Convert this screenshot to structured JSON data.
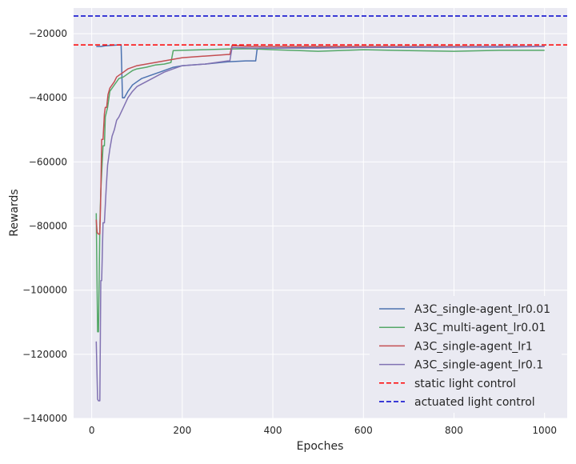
{
  "chart_data": {
    "type": "line",
    "xlabel": "Epoches",
    "ylabel": "Rewards",
    "xlim": [
      -40,
      1050
    ],
    "ylim": [
      -140000,
      -12000
    ],
    "xticks": [
      0,
      200,
      400,
      600,
      800,
      1000
    ],
    "xtick_labels": [
      "0",
      "200",
      "400",
      "600",
      "800",
      "1000"
    ],
    "yticks": [
      -140000,
      -120000,
      -100000,
      -80000,
      -60000,
      -40000,
      -20000
    ],
    "ytick_labels": [
      "−140000",
      "−120000",
      "−100000",
      "−80000",
      "−60000",
      "−40000",
      "−20000"
    ],
    "grid": true,
    "legend_position": "lower-right",
    "series": [
      {
        "name": "A3C_single-agent_lr0.01",
        "color": "#4c72b0",
        "style": "solid",
        "x": [
          10,
          20,
          30,
          40,
          50,
          60,
          65,
          68,
          72,
          80,
          85,
          90,
          100,
          110,
          120,
          130,
          140,
          150,
          160,
          180,
          200,
          250,
          300,
          340,
          362,
          365,
          370,
          400,
          500,
          600,
          700,
          800,
          900,
          1000
        ],
        "y": [
          -24000,
          -24000,
          -23800,
          -23700,
          -23600,
          -23500,
          -23500,
          -40000,
          -40000,
          -38000,
          -37000,
          -36000,
          -35000,
          -34000,
          -33500,
          -33000,
          -32500,
          -32000,
          -31500,
          -30500,
          -30000,
          -29500,
          -28800,
          -28500,
          -28500,
          -25000,
          -24500,
          -24500,
          -24300,
          -24300,
          -24300,
          -24200,
          -24200,
          -24000
        ]
      },
      {
        "name": "A3C_multi-agent_lr0.01",
        "color": "#55a868",
        "style": "solid",
        "x": [
          10,
          13,
          15,
          18,
          20,
          25,
          28,
          30,
          35,
          38,
          40,
          45,
          50,
          55,
          60,
          70,
          80,
          90,
          100,
          120,
          140,
          160,
          175,
          180,
          200,
          250,
          300,
          350,
          400,
          500,
          600,
          700,
          800,
          900,
          1000
        ],
        "y": [
          -76000,
          -113000,
          -113000,
          -80000,
          -69000,
          -55000,
          -55000,
          -46000,
          -43000,
          -40000,
          -38000,
          -37000,
          -36000,
          -35000,
          -34000,
          -33500,
          -32500,
          -31500,
          -31000,
          -30500,
          -29800,
          -29500,
          -29000,
          -25300,
          -25200,
          -25000,
          -24800,
          -24700,
          -25000,
          -25500,
          -25000,
          -25300,
          -25500,
          -25200,
          -25200
        ]
      },
      {
        "name": "A3C_single-agent_lr1",
        "color": "#c44e52",
        "style": "solid",
        "x": [
          10,
          12,
          15,
          18,
          20,
          22,
          25,
          28,
          30,
          33,
          36,
          40,
          45,
          50,
          55,
          60,
          65,
          70,
          80,
          90,
          100,
          120,
          140,
          160,
          180,
          200,
          250,
          300,
          305,
          310,
          350,
          400,
          500,
          600,
          700,
          800,
          900,
          1000
        ],
        "y": [
          -78000,
          -82000,
          -82500,
          -82500,
          -70000,
          -53000,
          -53000,
          -45000,
          -43000,
          -43000,
          -39000,
          -37000,
          -36000,
          -35000,
          -33500,
          -33000,
          -32500,
          -32000,
          -31000,
          -30500,
          -30000,
          -29500,
          -29000,
          -28500,
          -28000,
          -27500,
          -27000,
          -26500,
          -26500,
          -23700,
          -24000,
          -24000,
          -24000,
          -24000,
          -24000,
          -24000,
          -24000,
          -24000
        ]
      },
      {
        "name": "A3C_single-agent_lr0.1",
        "color": "#8172b2",
        "style": "solid",
        "x": [
          10,
          13,
          15,
          18,
          20,
          22,
          25,
          28,
          32,
          35,
          40,
          45,
          50,
          55,
          60,
          70,
          80,
          90,
          100,
          120,
          140,
          160,
          180,
          200,
          250,
          300,
          305,
          310,
          350,
          400,
          500,
          600,
          700,
          800,
          900,
          1000
        ],
        "y": [
          -116000,
          -134000,
          -134500,
          -134500,
          -97000,
          -97000,
          -79000,
          -79000,
          -68000,
          -61000,
          -56000,
          -52000,
          -50000,
          -47000,
          -46000,
          -43000,
          -40000,
          -38000,
          -36500,
          -35000,
          -33500,
          -32000,
          -31000,
          -30000,
          -29500,
          -28500,
          -28500,
          -24300,
          -24500,
          -24500,
          -24500,
          -24300,
          -24200,
          -24200,
          -24000,
          -24000
        ]
      },
      {
        "name": "static light control",
        "color": "#ff0000",
        "style": "dashed",
        "x": [
          -40,
          1050
        ],
        "y": [
          -23500,
          -23500
        ]
      },
      {
        "name": "actuated light control",
        "color": "#0000cc",
        "style": "dashed",
        "x": [
          -40,
          1050
        ],
        "y": [
          -14500,
          -14500
        ]
      }
    ]
  }
}
